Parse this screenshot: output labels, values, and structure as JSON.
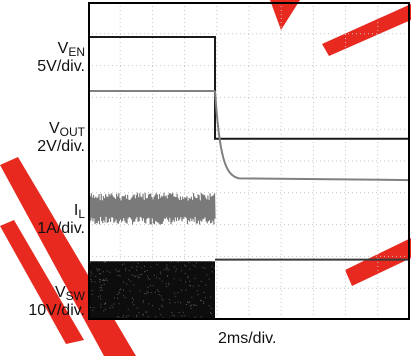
{
  "chart_data": {
    "type": "line",
    "title": "",
    "x_axis": {
      "label": "2ms/div.",
      "divisions": 10,
      "event_at_div": 5
    },
    "channels": [
      {
        "name": "V",
        "name_sub": "EN",
        "scale": "5V/div.",
        "before_div": 1.1,
        "after_div": 4.3,
        "color": "#1a1a1a"
      },
      {
        "name": "V",
        "name_sub": "OUT",
        "scale": "2V/div.",
        "before_div": 2.8,
        "after_div": 5.6,
        "color": "#808080"
      },
      {
        "name": "I",
        "name_sub": "L",
        "scale": "1A/div.",
        "before_div": 6.5,
        "after_div": 8.1,
        "color": "#7a7a7a"
      },
      {
        "name": "V",
        "name_sub": "SW",
        "scale": "10V/div.",
        "before_div": 9.6,
        "after_div": 9.6,
        "color": "#0d0d0d"
      }
    ],
    "grid": true,
    "colors": {
      "frame": "#000000",
      "grid": "#c4c4c4",
      "watermark": "#e6281e"
    }
  }
}
